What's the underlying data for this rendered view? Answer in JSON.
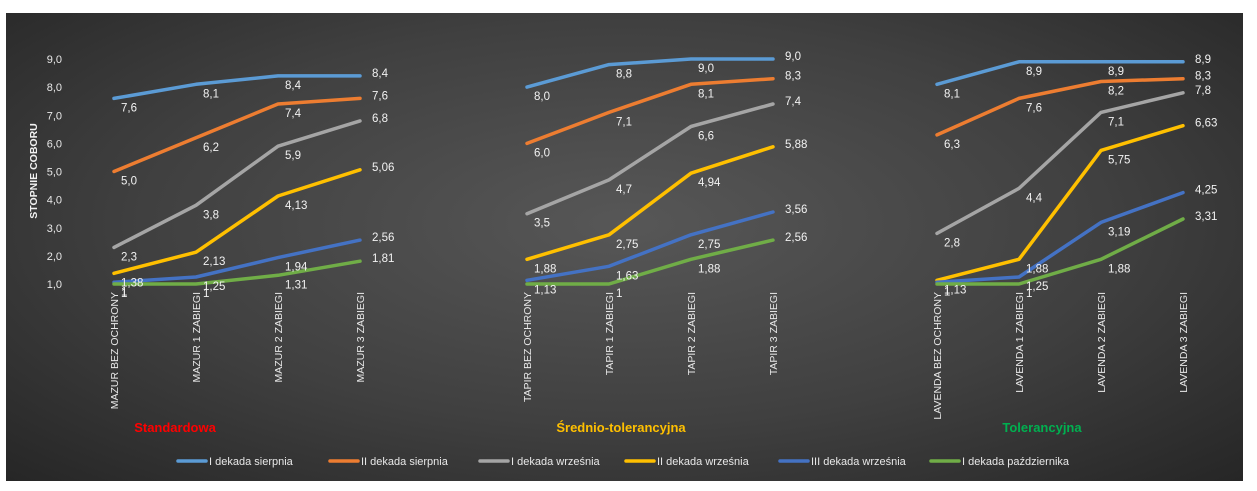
{
  "chart_data": {
    "type": "line",
    "ylabel": "STOPNIE COBORU",
    "ylim": [
      1.0,
      9.0
    ],
    "yticks": [
      "1,0",
      "2,0",
      "3,0",
      "4,0",
      "5,0",
      "6,0",
      "7,0",
      "8,0",
      "9,0"
    ],
    "grid": false,
    "legend_position": "bottom",
    "groups": [
      {
        "name": "Standardowa",
        "color": "#ff0000",
        "categories": [
          "MAZUR BEZ OCHRONY",
          "MAZUR 1 ZABIEGI",
          "MAZUR 2 ZABIEGI",
          "MAZUR 3 ZABIEGI"
        ],
        "series": [
          {
            "name": "I dekada sierpnia",
            "values": [
              7.6,
              8.1,
              8.4,
              8.4
            ],
            "labels": [
              "7,6",
              "8,1",
              "8,4",
              "8,4"
            ]
          },
          {
            "name": "II dekada sierpnia",
            "values": [
              5.0,
              6.2,
              7.4,
              7.6
            ],
            "labels": [
              "5,0",
              "6,2",
              "7,4",
              "7,6"
            ]
          },
          {
            "name": "I dekada września",
            "values": [
              2.3,
              3.8,
              5.9,
              6.8
            ],
            "labels": [
              "2,3",
              "3,8",
              "5,9",
              "6,8"
            ]
          },
          {
            "name": "II dekada września",
            "values": [
              1.38,
              2.13,
              4.13,
              5.06
            ],
            "labels": [
              "1,38",
              "2,13",
              "4,13",
              "5,06"
            ]
          },
          {
            "name": "III dekada września",
            "values": [
              1.06,
              1.25,
              1.94,
              2.56
            ],
            "labels": [
              "1",
              "1,25",
              "1,94",
              "2,56"
            ]
          },
          {
            "name": "I dekada października",
            "values": [
              1.0,
              1.0,
              1.31,
              1.81
            ],
            "labels": [
              "1",
              "1",
              "1,31",
              "1,81"
            ]
          }
        ]
      },
      {
        "name": "Średnio-tolerancyjna",
        "color": "#ffc000",
        "categories": [
          "TAPIR BEZ OCHRONY",
          "TAPIR 1 ZABIEGI",
          "TAPIR 2 ZABIEGI",
          "TAPIR 3 ZABIEGI"
        ],
        "series": [
          {
            "name": "I dekada sierpnia",
            "values": [
              8.0,
              8.8,
              9.0,
              9.0
            ],
            "labels": [
              "8,0",
              "8,8",
              "9,0",
              "9,0"
            ]
          },
          {
            "name": "II dekada sierpnia",
            "values": [
              6.0,
              7.1,
              8.1,
              8.3
            ],
            "labels": [
              "6,0",
              "7,1",
              "8,1",
              "8,3"
            ]
          },
          {
            "name": "I dekada września",
            "values": [
              3.5,
              4.7,
              6.6,
              7.4
            ],
            "labels": [
              "3,5",
              "4,7",
              "6,6",
              "7,4"
            ]
          },
          {
            "name": "II dekada września",
            "values": [
              1.88,
              2.75,
              4.94,
              5.88
            ],
            "labels": [
              "1,88",
              "2,75",
              "4,94",
              "5,88"
            ]
          },
          {
            "name": "III dekada września",
            "values": [
              1.13,
              1.63,
              2.75,
              3.56
            ],
            "labels": [
              "1,13",
              "1,63",
              "2,75",
              "3,56"
            ]
          },
          {
            "name": "I dekada października",
            "values": [
              1.0,
              1.0,
              1.88,
              2.56
            ],
            "labels": [
              "",
              "1",
              "1,88",
              "2,56"
            ]
          }
        ]
      },
      {
        "name": "Tolerancyjna",
        "color": "#00b050",
        "categories": [
          "LAVENDA BEZ OCHRONY",
          "LAVENDA 1 ZABIEGI",
          "LAVENDA 2 ZABIEGI",
          "LAVENDA 3 ZABIEGI"
        ],
        "series": [
          {
            "name": "I dekada sierpnia",
            "values": [
              8.1,
              8.9,
              8.9,
              8.9
            ],
            "labels": [
              "8,1",
              "8,9",
              "8,9",
              "8,9"
            ]
          },
          {
            "name": "II dekada sierpnia",
            "values": [
              6.3,
              7.6,
              8.2,
              8.3
            ],
            "labels": [
              "6,3",
              "7,6",
              "8,2",
              "8,3"
            ]
          },
          {
            "name": "I dekada września",
            "values": [
              2.8,
              4.4,
              7.1,
              7.8
            ],
            "labels": [
              "2,8",
              "4,4",
              "7,1",
              "7,8"
            ]
          },
          {
            "name": "II dekada września",
            "values": [
              1.13,
              1.88,
              5.75,
              6.63
            ],
            "labels": [
              "1,13",
              "1,88",
              "5,75",
              "6,63"
            ]
          },
          {
            "name": "III dekada września",
            "values": [
              1.06,
              1.25,
              3.19,
              4.25
            ],
            "labels": [
              "1",
              "1,25",
              "3,19",
              "4,25"
            ]
          },
          {
            "name": "I dekada października",
            "values": [
              1.0,
              1.0,
              1.88,
              3.31
            ],
            "labels": [
              "",
              "1",
              "1,88",
              "3,31"
            ]
          }
        ]
      }
    ],
    "legend": [
      {
        "name": "I dekada sierpnia",
        "color": "#5b9bd5"
      },
      {
        "name": "II dekada sierpnia",
        "color": "#ed7d31"
      },
      {
        "name": "I dekada września",
        "color": "#a5a5a5"
      },
      {
        "name": "II dekada września",
        "color": "#ffc000"
      },
      {
        "name": "III dekada września",
        "color": "#4472c4"
      },
      {
        "name": "I dekada października",
        "color": "#70ad47"
      }
    ]
  }
}
